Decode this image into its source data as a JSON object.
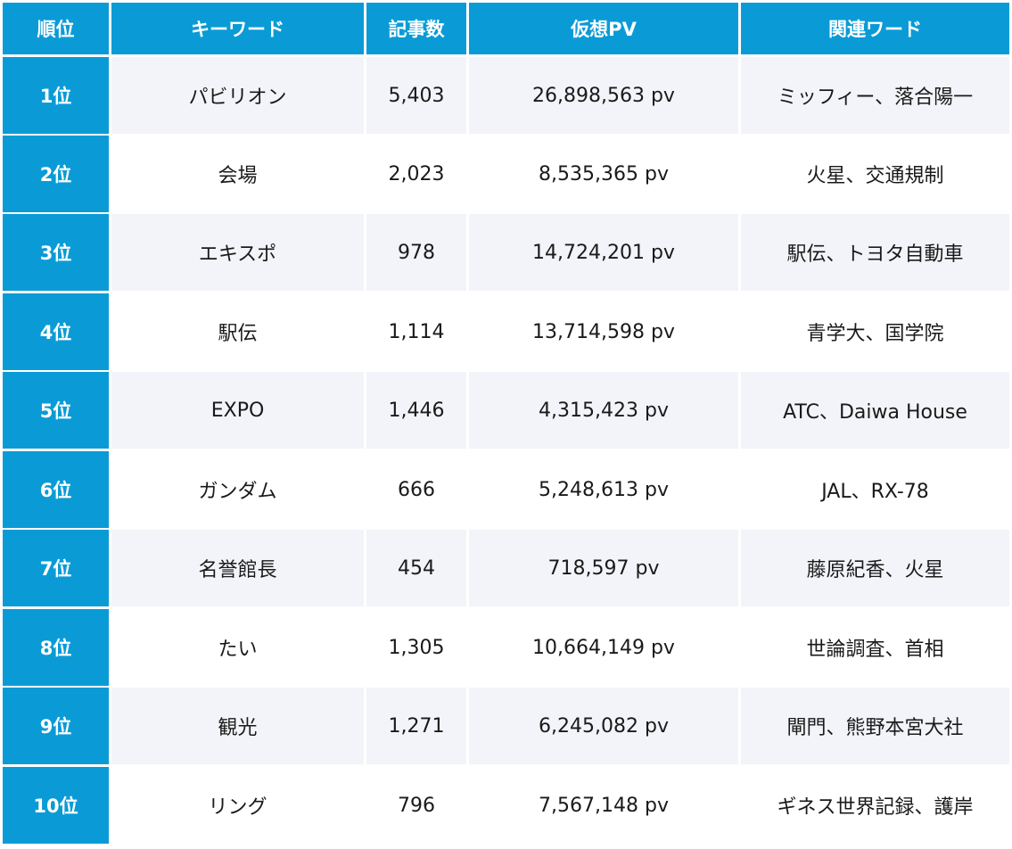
{
  "header": {
    "rank": "順位",
    "keyword": "キーワード",
    "articles": "記事数",
    "pv": "仮想PV",
    "related": "関連ワード"
  },
  "rows": [
    {
      "rank": "1位",
      "keyword": "パビリオン",
      "articles": "5,403",
      "pv": "26,898,563 pv",
      "related": "ミッフィー、落合陽一"
    },
    {
      "rank": "2位",
      "keyword": "会場",
      "articles": "2,023",
      "pv": "8,535,365 pv",
      "related": "火星、交通規制"
    },
    {
      "rank": "3位",
      "keyword": "エキスポ",
      "articles": "978",
      "pv": "14,724,201 pv",
      "related": "駅伝、トヨタ自動車"
    },
    {
      "rank": "4位",
      "keyword": "駅伝",
      "articles": "1,114",
      "pv": "13,714,598 pv",
      "related": "青学大、国学院"
    },
    {
      "rank": "5位",
      "keyword": "EXPO",
      "articles": "1,446",
      "pv": "4,315,423 pv",
      "related": "ATC、Daiwa House"
    },
    {
      "rank": "6位",
      "keyword": "ガンダム",
      "articles": "666",
      "pv": "5,248,613 pv",
      "related": "JAL、RX-78"
    },
    {
      "rank": "7位",
      "keyword": "名誉館長",
      "articles": "454",
      "pv": "718,597 pv",
      "related": "藤原紀香、火星"
    },
    {
      "rank": "8位",
      "keyword": "たい",
      "articles": "1,305",
      "pv": "10,664,149 pv",
      "related": "世論調査、首相"
    },
    {
      "rank": "9位",
      "keyword": "観光",
      "articles": "1,271",
      "pv": "6,245,082 pv",
      "related": "閘門、熊野本宮大社"
    },
    {
      "rank": "10位",
      "keyword": "リング",
      "articles": "796",
      "pv": "7,567,148 pv",
      "related": "ギネス世界記録、護岸"
    }
  ]
}
